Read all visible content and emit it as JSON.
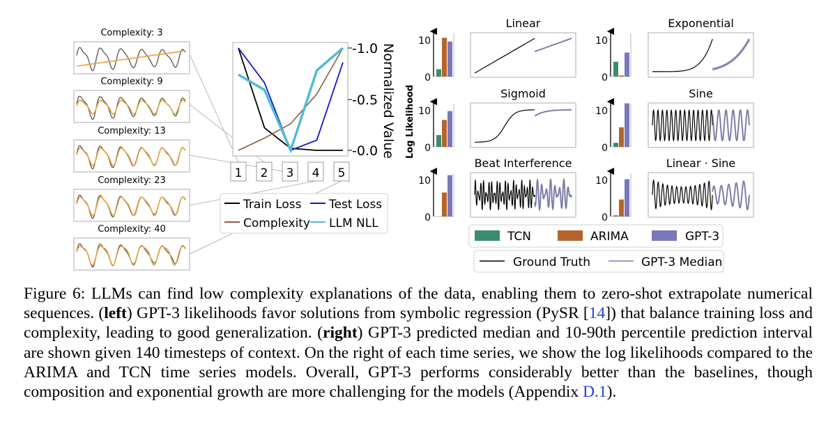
{
  "colors": {
    "train_loss": "#000000",
    "test_loss": "#1414d2",
    "complexity": "#8c5a44",
    "llm_nll": "#4fbcd0",
    "tcn": "#3a8c6e",
    "arima": "#b5652a",
    "gpt3": "#7a78b8",
    "pysr_fit": "#e8a33a",
    "ground_truth": "#000000",
    "gpt3_median": "#7a78b8"
  },
  "left_panel": {
    "complexity_titles": [
      "Complexity: 3",
      "Complexity: 9",
      "Complexity: 13",
      "Complexity: 23",
      "Complexity: 40"
    ],
    "middle_chart": {
      "ylabel": "Normalized Value",
      "yticks": [
        "-1.0",
        "-0.5",
        "-0.0"
      ],
      "xticks": [
        "1",
        "2",
        "3",
        "4",
        "5"
      ],
      "legend": [
        "Train Loss",
        "Test Loss",
        "Complexity",
        "LLM NLL"
      ]
    }
  },
  "chart_data": [
    {
      "type": "line",
      "x": [
        1,
        2,
        3,
        4,
        5
      ],
      "ylim": [
        0,
        1
      ],
      "ylabel": "Normalized Value",
      "series": [
        {
          "name": "Train Loss",
          "values": [
            1.0,
            0.22,
            0.02,
            0.0,
            0.0
          ]
        },
        {
          "name": "Test Loss",
          "values": [
            1.0,
            0.66,
            0.0,
            0.1,
            0.86
          ]
        },
        {
          "name": "Complexity",
          "values": [
            0.0,
            0.12,
            0.26,
            0.55,
            1.0
          ]
        },
        {
          "name": "LLM NLL",
          "values": [
            0.74,
            0.59,
            0.0,
            0.78,
            1.0
          ]
        }
      ]
    },
    {
      "type": "bar",
      "title": "Log Likelihood",
      "ylabel": "Log Likelihood",
      "yticks": [
        "10",
        "0"
      ],
      "ylim": [
        0,
        12
      ],
      "categories": [
        "TCN",
        "ARIMA",
        "GPT-3"
      ],
      "panels": [
        {
          "name": "Linear",
          "values": [
            2,
            10.5,
            9.5
          ]
        },
        {
          "name": "Exponential",
          "values": [
            4,
            0.3,
            6.5
          ]
        },
        {
          "name": "Sigmoid",
          "values": [
            3.2,
            7.3,
            9.7
          ]
        },
        {
          "name": "Sine",
          "values": [
            1.1,
            5.3,
            11.8
          ]
        },
        {
          "name": "Beat Interference",
          "values": [
            0,
            6.5,
            11.2
          ]
        },
        {
          "name": "Linear · Sine",
          "values": [
            0.3,
            4.6,
            10.1
          ]
        }
      ]
    }
  ],
  "right_panel": {
    "titles": [
      "Linear",
      "Exponential",
      "Sigmoid",
      "Sine",
      "Beat Interference",
      "Linear · Sine"
    ],
    "bar_ylabel": "Log Likelihood",
    "yticks": [
      "10",
      "0"
    ],
    "legend_bars": [
      "TCN",
      "ARIMA",
      "GPT-3"
    ],
    "legend_lines": [
      "Ground Truth",
      "GPT-3 Median"
    ]
  },
  "caption": {
    "figure_label": "Figure 6:",
    "part1": " LLMs can find low complexity explanations of the data, enabling them to zero-shot extrapolate numerical sequences. (",
    "left": "left",
    "part2": ") GPT-3 likelihoods favor solutions from symbolic regression (PySR [",
    "ref1": "14",
    "part3": "]) that balance training loss and complexity, leading to good generalization. (",
    "right": "right",
    "part4": ") GPT-3 predicted median and 10-90th percentile prediction interval are shown given 140 timesteps of context. On the right of each time series, we show the log likelihoods compared to the ARIMA and TCN time series models. Overall, GPT-3 performs considerably better than the baselines, though composition and exponential growth are more challenging for the models (Appendix ",
    "ref2": "D.1",
    "part5": ")."
  }
}
